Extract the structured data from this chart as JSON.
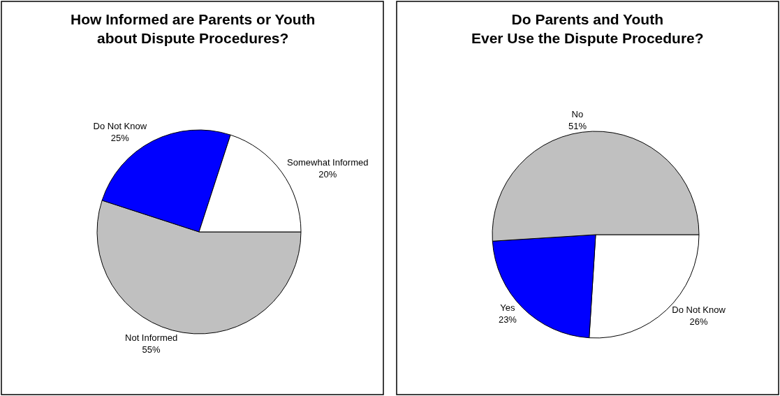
{
  "chart_data": [
    {
      "type": "pie",
      "title": "How Informed are Parents or Youth\nabout Dispute Procedures?",
      "categories": [
        "Not Informed",
        "Do Not Know",
        "Somewhat Informed"
      ],
      "values": [
        55,
        25,
        20
      ],
      "value_labels": [
        "55%",
        "25%",
        "20%"
      ],
      "colors": [
        "#c0c0c0",
        "#0000ff",
        "#ffffff"
      ]
    },
    {
      "type": "pie",
      "title": "Do Parents and Youth\nEver Use the Dispute Procedure?",
      "categories": [
        "Do Not Know",
        "Yes",
        "No"
      ],
      "values": [
        26,
        23,
        51
      ],
      "value_labels": [
        "26%",
        "23%",
        "51%"
      ],
      "colors": [
        "#ffffff",
        "#0000ff",
        "#c0c0c0"
      ]
    }
  ]
}
